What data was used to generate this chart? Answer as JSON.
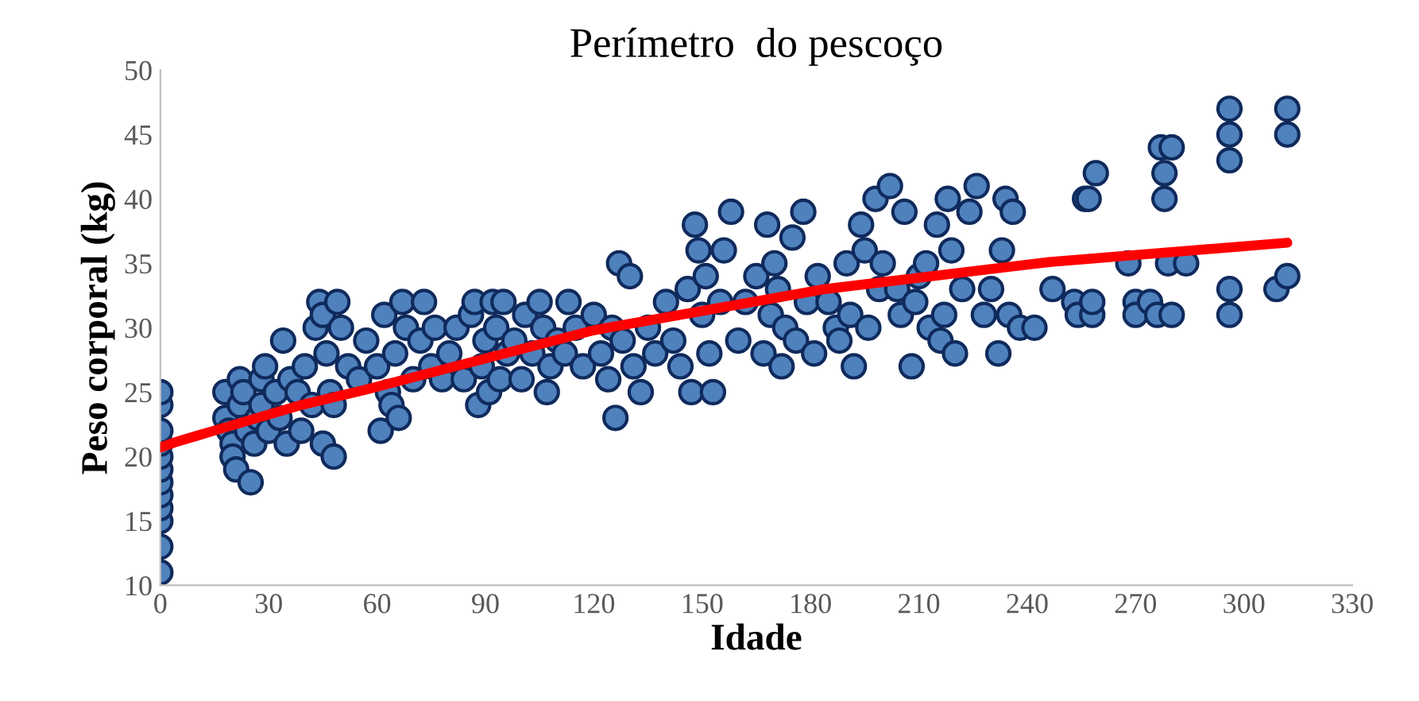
{
  "chart_data": {
    "type": "scatter",
    "title": "Perímetro  do pescoço",
    "xlabel": "Idade",
    "ylabel": "Peso corporal (kg)",
    "xlim": [
      0,
      330
    ],
    "xticks": [
      0,
      30,
      60,
      90,
      120,
      150,
      180,
      210,
      240,
      270,
      300,
      330
    ],
    "ylim": [
      10,
      50
    ],
    "yticks": [
      10,
      15,
      20,
      25,
      30,
      35,
      40,
      45,
      50
    ],
    "grid": false,
    "legend": false,
    "marker": "circle",
    "series": [
      {
        "color": "#4f81bd",
        "x": [
          0,
          0,
          0,
          0,
          0,
          0,
          0,
          0,
          0,
          0,
          0,
          0,
          18,
          18,
          19,
          20,
          20,
          21,
          22,
          22,
          23,
          24,
          25,
          26,
          27,
          28,
          28,
          29,
          30,
          32,
          33,
          34,
          35,
          36,
          38,
          39,
          40,
          42,
          43,
          44,
          45,
          45,
          46,
          47,
          48,
          48,
          49,
          50,
          52,
          55,
          57,
          60,
          61,
          62,
          63,
          64,
          65,
          66,
          67,
          68,
          70,
          72,
          73,
          75,
          76,
          78,
          80,
          82,
          84,
          86,
          87,
          88,
          89,
          90,
          91,
          92,
          93,
          94,
          95,
          96,
          98,
          100,
          101,
          103,
          105,
          106,
          107,
          108,
          110,
          112,
          113,
          115,
          117,
          120,
          122,
          124,
          125,
          126,
          127,
          128,
          130,
          131,
          133,
          135,
          137,
          140,
          142,
          144,
          146,
          147,
          148,
          149,
          150,
          151,
          152,
          153,
          155,
          156,
          158,
          160,
          162,
          165,
          167,
          168,
          169,
          170,
          171,
          172,
          173,
          175,
          176,
          178,
          179,
          181,
          182,
          185,
          187,
          188,
          190,
          191,
          192,
          194,
          195,
          196,
          198,
          199,
          200,
          202,
          204,
          205,
          206,
          208,
          209,
          210,
          212,
          213,
          215,
          216,
          217,
          218,
          219,
          220,
          222,
          224,
          226,
          228,
          230,
          232,
          233,
          234,
          235,
          236,
          238,
          242,
          247,
          253,
          254,
          256,
          257,
          258,
          258,
          259,
          268,
          270,
          270,
          274,
          276,
          277,
          278,
          278,
          279,
          280,
          280,
          284,
          296,
          296,
          296,
          296,
          296,
          309,
          312,
          312,
          312
        ],
        "values": [
          11,
          13,
          15,
          16,
          17,
          18,
          19,
          20,
          21,
          22,
          24,
          25,
          25,
          23,
          22,
          21,
          20,
          19,
          24,
          26,
          25,
          22,
          18,
          21,
          23,
          24,
          26,
          27,
          22,
          25,
          23,
          29,
          21,
          26,
          25,
          22,
          27,
          24,
          30,
          32,
          31,
          21,
          28,
          25,
          20,
          24,
          32,
          30,
          27,
          26,
          29,
          27,
          22,
          31,
          25,
          24,
          28,
          23,
          32,
          30,
          26,
          29,
          32,
          27,
          30,
          26,
          28,
          30,
          26,
          31,
          32,
          24,
          27,
          29,
          25,
          32,
          30,
          26,
          32,
          28,
          29,
          26,
          31,
          28,
          32,
          30,
          25,
          27,
          29,
          28,
          32,
          30,
          27,
          31,
          28,
          26,
          30,
          23,
          35,
          29,
          34,
          27,
          25,
          30,
          28,
          32,
          29,
          27,
          33,
          25,
          38,
          36,
          31,
          34,
          28,
          25,
          32,
          36,
          39,
          29,
          32,
          34,
          28,
          38,
          31,
          35,
          33,
          27,
          30,
          37,
          29,
          39,
          32,
          28,
          34,
          32,
          30,
          29,
          35,
          31,
          27,
          38,
          36,
          30,
          40,
          33,
          35,
          41,
          33,
          31,
          39,
          27,
          32,
          34,
          35,
          30,
          38,
          29,
          31,
          40,
          36,
          28,
          33,
          39,
          41,
          31,
          33,
          28,
          36,
          40,
          31,
          39,
          30,
          30,
          33,
          32,
          31,
          40,
          40,
          31,
          32,
          42,
          35,
          32,
          31,
          32,
          31,
          44,
          42,
          40,
          35,
          44,
          31,
          35,
          47,
          45,
          43,
          33,
          31,
          33,
          47,
          45,
          34
        ]
      },
      {
        "type": "line",
        "color": "#ff0000",
        "marker": "none",
        "line_style": "solid",
        "x": [
          0,
          4,
          16,
          39,
          57,
          120,
          184,
          246,
          312
        ],
        "values": [
          20.7,
          21.1,
          22.1,
          24.0,
          25.2,
          29.8,
          33.0,
          35.1,
          36.6
        ]
      }
    ]
  }
}
